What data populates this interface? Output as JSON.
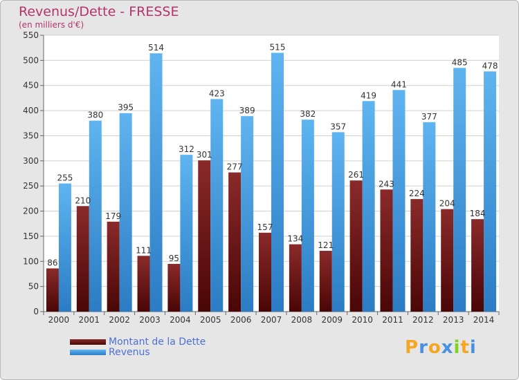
{
  "header": {
    "title": "Revenus/Dette - FRESSE",
    "subtitle": "(en milliers d'€)"
  },
  "chart_data": {
    "type": "bar",
    "categories": [
      "2000",
      "2001",
      "2002",
      "2003",
      "2004",
      "2005",
      "2006",
      "2007",
      "2008",
      "2009",
      "2010",
      "2011",
      "2012",
      "2013",
      "2014"
    ],
    "series": [
      {
        "name": "Montant de la Dette",
        "values": [
          86,
          210,
          179,
          111,
          95,
          301,
          277,
          157,
          134,
          121,
          261,
          243,
          224,
          204,
          184
        ],
        "color": "#7a1a1a"
      },
      {
        "name": "Revenus",
        "values": [
          255,
          380,
          395,
          514,
          312,
          423,
          389,
          515,
          382,
          357,
          419,
          441,
          377,
          485,
          478
        ],
        "color": "#4aa3e6"
      }
    ],
    "ylim": [
      0,
      550
    ],
    "yticks": [
      0,
      50,
      100,
      150,
      200,
      250,
      300,
      350,
      400,
      450,
      500,
      550
    ],
    "grid": true,
    "legend_position": "bottom-left"
  },
  "logo": {
    "letters": [
      "P",
      "r",
      "o",
      "x",
      "i",
      "t",
      "i"
    ],
    "colors": [
      "#f5a623",
      "#4a90e2",
      "#f5a623",
      "#4a90e2",
      "#7ed321",
      "#f5a623",
      "#4a90e2"
    ]
  }
}
